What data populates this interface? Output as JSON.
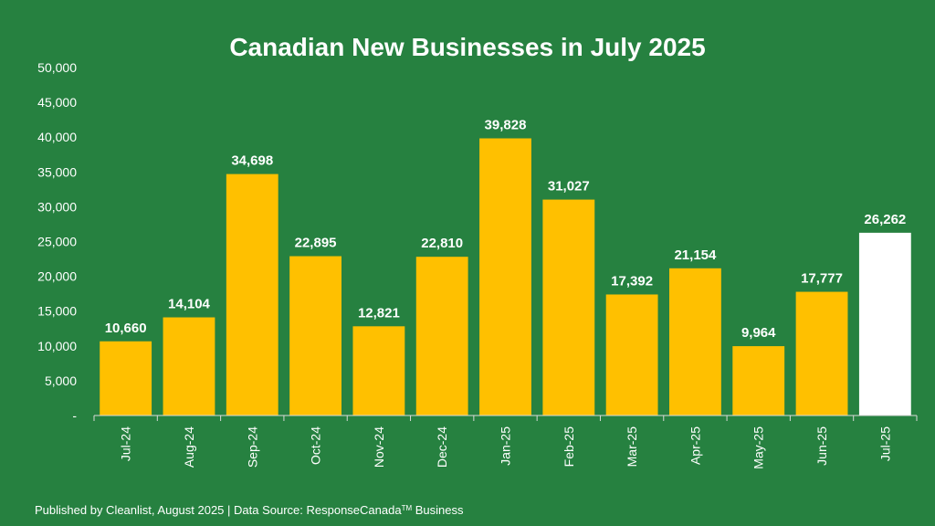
{
  "chart_data": {
    "type": "bar",
    "title": "Canadian New Businesses in July 2025",
    "categories": [
      "Jul-24",
      "Aug-24",
      "Sep-24",
      "Oct-24",
      "Nov-24",
      "Dec-24",
      "Jan-25",
      "Feb-25",
      "Mar-25",
      "Apr-25",
      "May-25",
      "Jun-25",
      "Jul-25"
    ],
    "values": [
      10660,
      14104,
      34698,
      22895,
      12821,
      22810,
      39828,
      31027,
      17392,
      21154,
      9964,
      17777,
      26262
    ],
    "value_labels": [
      "10,660",
      "14,104",
      "34,698",
      "22,895",
      "12,821",
      "22,810",
      "39,828",
      "31,027",
      "17,392",
      "21,154",
      "9,964",
      "17,777",
      "26,262"
    ],
    "highlighted_category": "Jul-25",
    "y_ticks": [
      "-",
      "5,000",
      "10,000",
      "15,000",
      "20,000",
      "25,000",
      "30,000",
      "35,000",
      "40,000",
      "45,000",
      "50,000"
    ],
    "ylim": [
      0,
      50000
    ],
    "xlabel": "",
    "ylabel": "",
    "grid": false,
    "colors": {
      "background": "#268140",
      "bar": "#FFC000",
      "highlight_bar": "#FFFFFF",
      "text": "#FFFFFF"
    }
  },
  "footer": {
    "text": "Published by Cleanlist, August 2025 | Data Source: ResponseCanada",
    "trademark": "TM",
    "suffix": " Business"
  }
}
